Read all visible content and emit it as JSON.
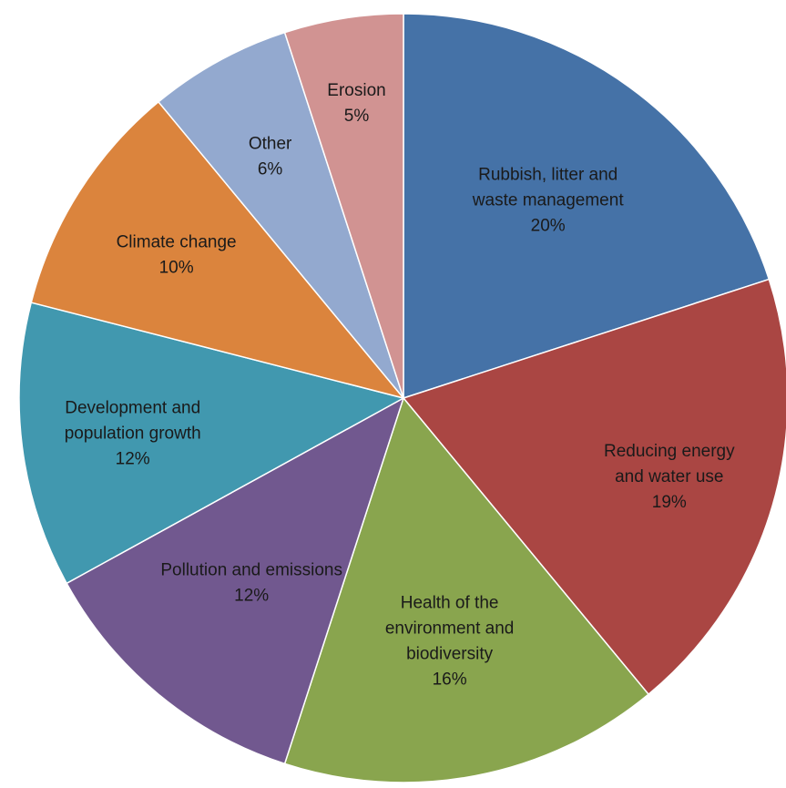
{
  "chart_data": {
    "type": "pie",
    "title": "",
    "start": "top, clockwise",
    "slices": [
      {
        "label": "Rubbish, litter and waste management",
        "label_lines": [
          "Rubbish, litter and",
          "waste management"
        ],
        "percent_label": "20%",
        "value": 20,
        "color": "#4572A7"
      },
      {
        "label": "Reducing energy and water use",
        "label_lines": [
          "Reducing energy",
          "and water use"
        ],
        "percent_label": "19%",
        "value": 19,
        "color": "#AA4643"
      },
      {
        "label": "Health of the environment and biodiversity",
        "label_lines": [
          "Health of the",
          "environment and",
          "biodiversity"
        ],
        "percent_label": "16%",
        "value": 16,
        "color": "#89A54E"
      },
      {
        "label": "Pollution and emissions",
        "label_lines": [
          "Pollution and emissions"
        ],
        "percent_label": "12%",
        "value": 12,
        "color": "#71588F"
      },
      {
        "label": "Development and population growth",
        "label_lines": [
          "Development and",
          "population growth"
        ],
        "percent_label": "12%",
        "value": 12,
        "color": "#4198AF"
      },
      {
        "label": "Climate change",
        "label_lines": [
          "Climate change"
        ],
        "percent_label": "10%",
        "value": 10,
        "color": "#DB843D"
      },
      {
        "label": "Other",
        "label_lines": [
          "Other"
        ],
        "percent_label": "6%",
        "value": 6,
        "color": "#93A9CF"
      },
      {
        "label": "Erosion",
        "label_lines": [
          "Erosion"
        ],
        "percent_label": "5%",
        "value": 5,
        "color": "#D19392"
      }
    ]
  }
}
